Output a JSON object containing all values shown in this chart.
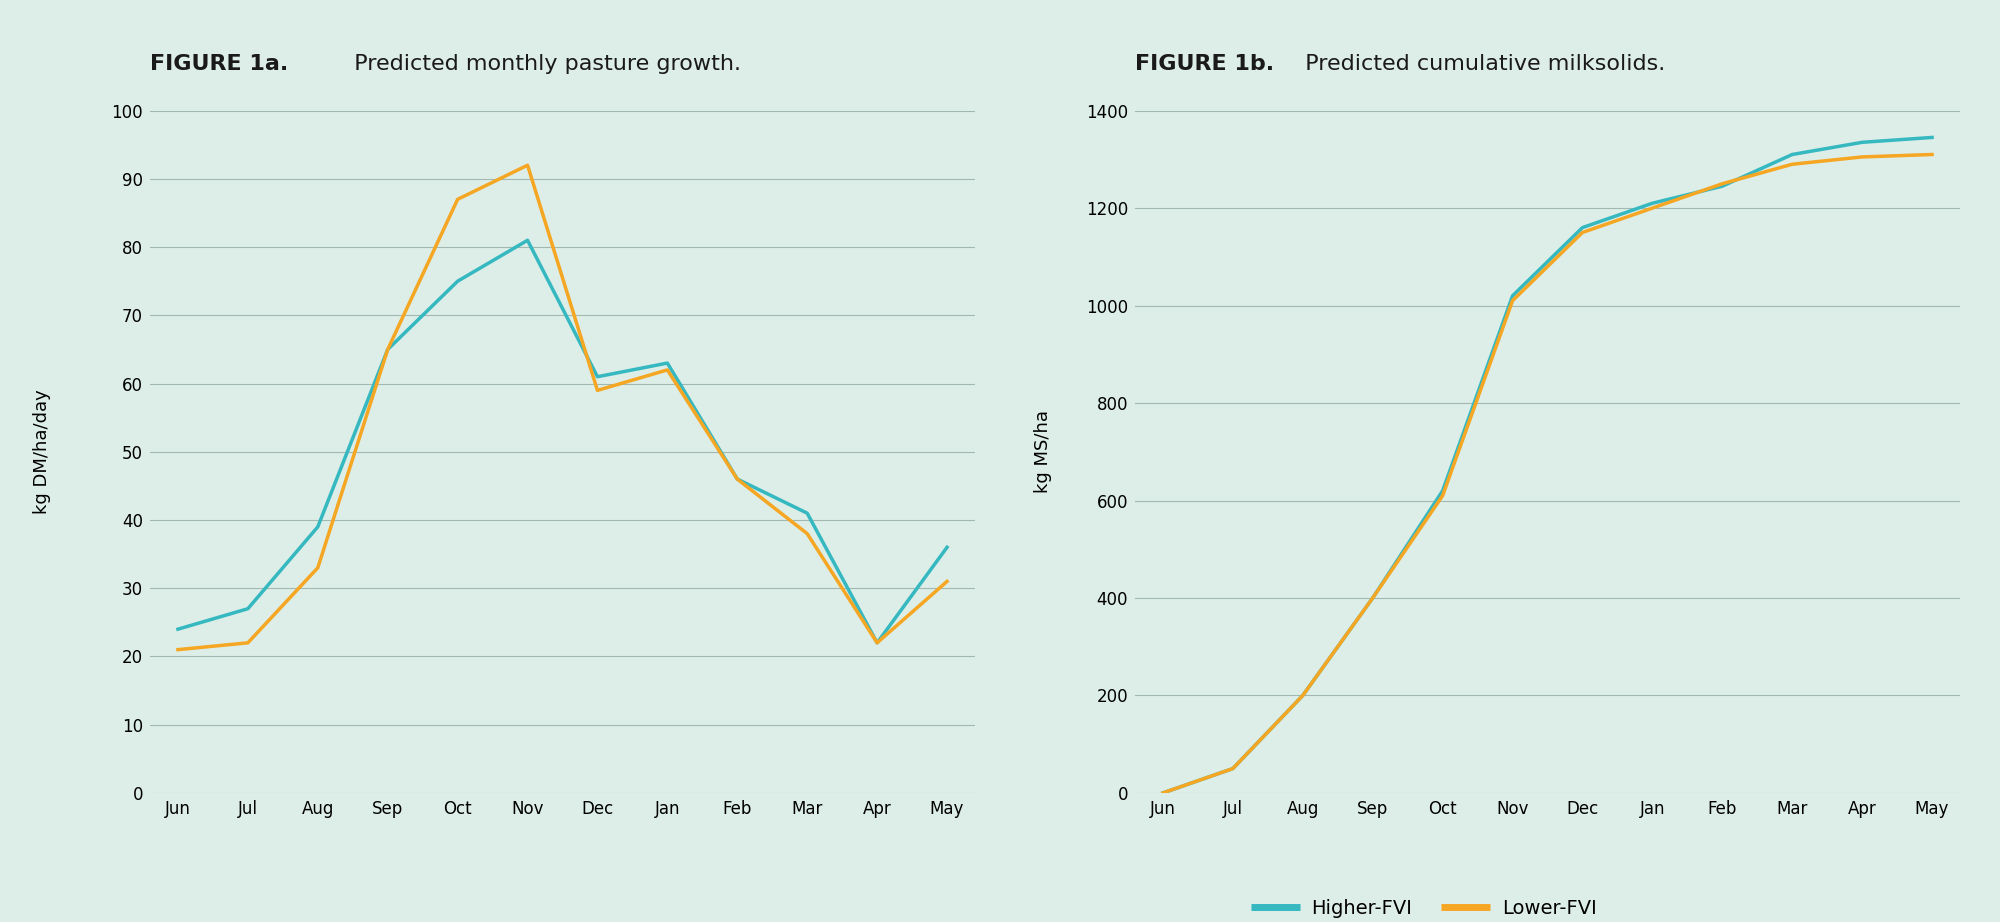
{
  "background_color": "#ddeee8",
  "fig1a_title_bold": "FIGURE 1a.",
  "fig1a_title_normal": "  Predicted monthly pasture growth.",
  "fig1b_title_bold": "FIGURE 1b.",
  "fig1b_title_normal": "  Predicted cumulative milksolids.",
  "months": [
    "Jun",
    "Jul",
    "Aug",
    "Sep",
    "Oct",
    "Nov",
    "Dec",
    "Jan",
    "Feb",
    "Mar",
    "Apr",
    "May"
  ],
  "fig1a_higher_fvi": [
    24,
    27,
    39,
    65,
    75,
    81,
    61,
    63,
    46,
    41,
    22,
    36
  ],
  "fig1a_lower_fvi": [
    21,
    22,
    33,
    65,
    87,
    92,
    59,
    62,
    46,
    38,
    22,
    31
  ],
  "fig1b_higher_fvi": [
    0,
    50,
    200,
    400,
    620,
    1020,
    1160,
    1210,
    1245,
    1310,
    1335,
    1345
  ],
  "fig1b_lower_fvi": [
    0,
    50,
    200,
    400,
    610,
    1010,
    1150,
    1200,
    1250,
    1290,
    1305,
    1310
  ],
  "higher_fvi_color": "#35b8c0",
  "lower_fvi_color": "#f5a623",
  "fig1a_ylabel": "kg DM/ha/day",
  "fig1b_ylabel": "kg MS/ha",
  "fig1a_ylim": [
    0,
    100
  ],
  "fig1a_yticks": [
    0,
    10,
    20,
    30,
    40,
    50,
    60,
    70,
    80,
    90,
    100
  ],
  "fig1b_ylim": [
    0,
    1400
  ],
  "fig1b_yticks": [
    0,
    200,
    400,
    600,
    800,
    1000,
    1200,
    1400
  ],
  "line_width": 2.5,
  "legend_higher": "Higher-FVI",
  "legend_lower": "Lower-FVI",
  "title_fontsize": 16,
  "axis_label_fontsize": 13,
  "tick_fontsize": 12,
  "legend_fontsize": 14,
  "grid_color": "#a0b8b0",
  "grid_lw": 0.8
}
